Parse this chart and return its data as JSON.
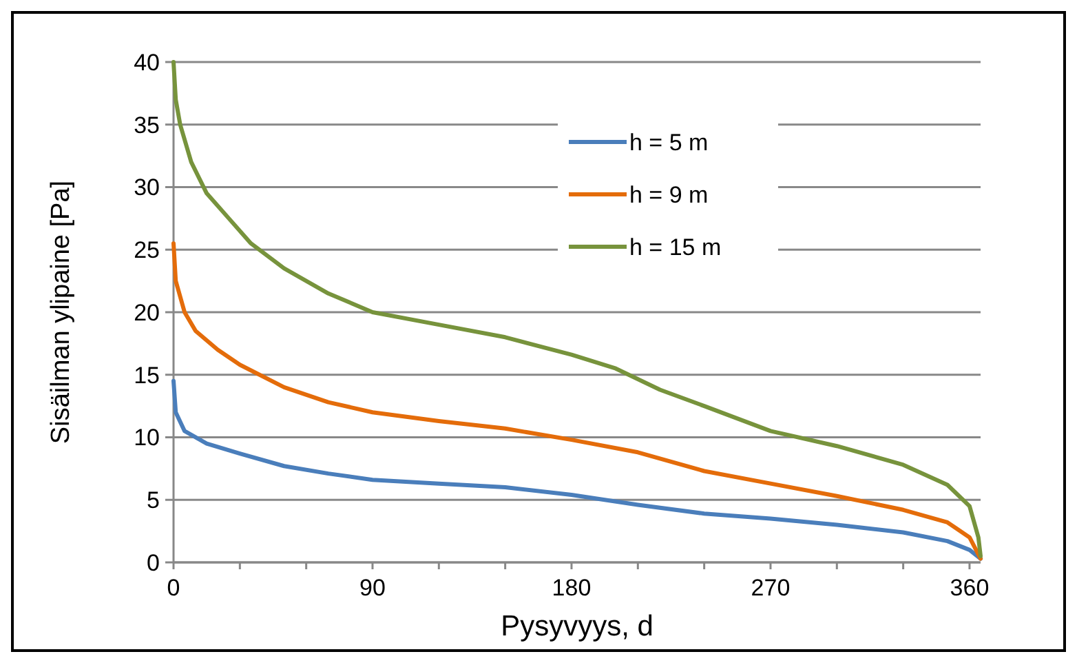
{
  "chart_data": {
    "type": "line",
    "xlabel": "Pysyvyys,  d",
    "ylabel": "Sisäilman ylipaine  [Pa]",
    "xlim": [
      0,
      365
    ],
    "xticks": [
      0,
      {
        "value": 30,
        "label": null
      },
      {
        "value": 60,
        "label": null
      },
      90,
      {
        "value": 120,
        "label": null
      },
      {
        "value": 150,
        "label": null
      },
      180,
      {
        "value": 210,
        "label": null
      },
      {
        "value": 240,
        "label": null
      },
      270,
      {
        "value": 300,
        "label": null
      },
      {
        "value": 330,
        "label": null
      },
      360
    ],
    "ylim": [
      0,
      40
    ],
    "yticks": [
      0,
      5,
      10,
      15,
      20,
      25,
      30,
      35,
      40
    ],
    "grid": "y",
    "legend": "top right",
    "marker": "none",
    "line_style": "solid",
    "series": [
      {
        "name": "h = 5 m",
        "color": "#4a7ebb",
        "x": [
          0,
          1,
          5,
          15,
          30,
          50,
          70,
          90,
          120,
          150,
          180,
          210,
          240,
          270,
          300,
          330,
          350,
          360,
          365
        ],
        "values": [
          14.5,
          12,
          10.5,
          9.5,
          8.7,
          7.7,
          7.1,
          6.6,
          6.3,
          6,
          5.4,
          4.6,
          3.9,
          3.5,
          3,
          2.4,
          1.7,
          1,
          0.3
        ]
      },
      {
        "name": "h = 9 m",
        "color": "#e46c0a",
        "x": [
          0,
          1,
          5,
          10,
          20,
          30,
          50,
          70,
          90,
          120,
          150,
          180,
          210,
          240,
          270,
          300,
          330,
          350,
          360,
          365
        ],
        "values": [
          25.5,
          22.5,
          20,
          18.5,
          17,
          15.8,
          14,
          12.8,
          12,
          11.3,
          10.7,
          9.8,
          8.8,
          7.3,
          6.3,
          5.3,
          4.2,
          3.2,
          2,
          0.3
        ]
      },
      {
        "name": "h = 15 m",
        "color": "#77933c",
        "x": [
          0,
          1,
          3,
          8,
          15,
          25,
          35,
          50,
          70,
          90,
          120,
          150,
          180,
          200,
          220,
          240,
          270,
          300,
          330,
          350,
          360,
          364,
          365
        ],
        "values": [
          40,
          37,
          35,
          32,
          29.5,
          27.5,
          25.5,
          23.5,
          21.5,
          20,
          19,
          18,
          16.6,
          15.5,
          13.8,
          12.5,
          10.5,
          9.3,
          7.8,
          6.2,
          4.5,
          2,
          0.5
        ]
      }
    ]
  }
}
